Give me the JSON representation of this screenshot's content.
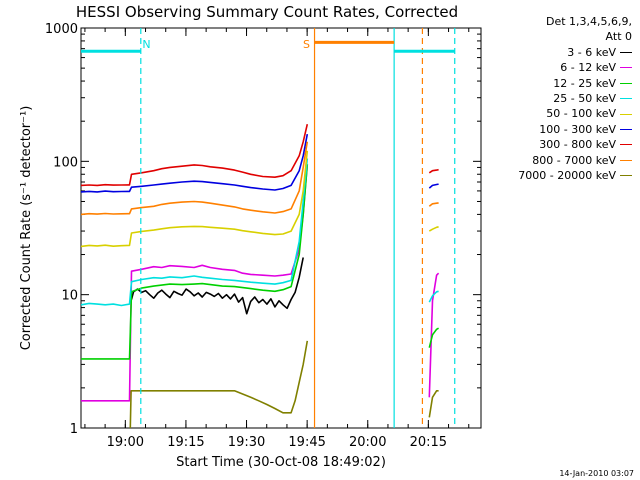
{
  "chart_data": {
    "type": "line",
    "title": "HESSI Observing Summary Count Rates, Corrected",
    "xlabel": "Start Time (30-Oct-08 18:49:02)",
    "ylabel": "Corrected Count Rate (s⁻¹ detector⁻¹)",
    "yscale": "log",
    "ylim": [
      1,
      1000
    ],
    "xlim_minutes_after_start": [
      0,
      99
    ],
    "x_ticks": [
      "19:00",
      "19:15",
      "19:30",
      "19:45",
      "20:00",
      "20:15"
    ],
    "x_tick_minutes_after_start": [
      10.97,
      25.97,
      40.97,
      55.97,
      70.97,
      85.97
    ],
    "y_ticks": [
      "1",
      "10",
      "100",
      "1000"
    ],
    "y_tick_values": [
      1,
      10,
      100,
      1000
    ],
    "legend_header": [
      "Det 1,3,4,5,6,9,",
      "Att 0"
    ],
    "legend_position": "outside-right",
    "series": [
      {
        "name": "3 - 6 keV",
        "color": "#000000",
        "segments": [
          {
            "x": [
              12.5,
              13,
              14,
              15,
              16,
              17,
              18,
              19,
              20,
              21,
              22,
              23,
              24,
              25,
              26,
              27,
              28,
              29,
              30,
              31,
              32,
              33,
              34,
              35,
              36,
              37,
              38,
              39,
              40,
              41,
              42,
              43,
              44,
              45,
              46,
              47,
              48,
              49,
              50,
              51,
              52,
              53,
              54,
              55
            ],
            "y": [
              9.2,
              10.5,
              11,
              10.4,
              10.7,
              10,
              9.4,
              10.3,
              10.8,
              10.1,
              9.5,
              10.6,
              10.2,
              9.9,
              11,
              10.5,
              9.8,
              10.3,
              9.6,
              10.4,
              10.1,
              9.7,
              10.2,
              9.4,
              10,
              9.3,
              10.1,
              8.8,
              9.5,
              7.2,
              8.9,
              9.6,
              8.7,
              9.2,
              8.5,
              9.3,
              8.1,
              9,
              8.4,
              7.9,
              9.2,
              10.4,
              13.5,
              19
            ]
          }
        ]
      },
      {
        "name": "6 - 12 keV",
        "color": "#e000e0",
        "segments": [
          {
            "x": [
              0,
              2,
              4,
              6,
              8,
              10,
              12,
              12.5,
              15,
              18,
              20,
              22,
              25,
              28,
              30,
              32,
              35,
              38,
              40,
              42,
              45,
              48,
              50,
              52,
              54,
              55,
              56
            ],
            "y": [
              1.6,
              1.6,
              1.6,
              1.6,
              1.6,
              1.6,
              1.6,
              15,
              15.5,
              16.2,
              16,
              16.5,
              16.3,
              16,
              16.6,
              16,
              15.5,
              15.2,
              14.5,
              14.2,
              14,
              13.8,
              14,
              14.3,
              22,
              40,
              95
            ]
          },
          {
            "x": [
              86.2,
              87,
              88,
              88.5
            ],
            "y": [
              1.7,
              9,
              14,
              14.5
            ]
          }
        ]
      },
      {
        "name": "12 - 25 keV",
        "color": "#00d000",
        "segments": [
          {
            "x": [
              0,
              2,
              4,
              6,
              8,
              10,
              12,
              12.5,
              15,
              18,
              20,
              22,
              25,
              28,
              30,
              32,
              35,
              38,
              40,
              42,
              45,
              48,
              50,
              52,
              54,
              55,
              56
            ],
            "y": [
              3.3,
              3.3,
              3.3,
              3.3,
              3.3,
              3.3,
              3.3,
              10.5,
              11.2,
              11.6,
              11.8,
              12,
              11.9,
              12,
              12.1,
              11.9,
              11.6,
              11.5,
              11.3,
              11.1,
              10.8,
              10.6,
              10.9,
              11.5,
              20,
              40,
              95
            ]
          },
          {
            "x": [
              86.2,
              87,
              88,
              88.5
            ],
            "y": [
              4,
              5,
              5.5,
              5.6
            ]
          }
        ]
      },
      {
        "name": "25 - 50 keV",
        "color": "#00e0e0",
        "segments": [
          {
            "x": [
              0,
              2,
              4,
              6,
              8,
              10,
              12,
              12.5,
              15,
              18,
              20,
              22,
              25,
              28,
              30,
              32,
              35,
              38,
              40,
              42,
              45,
              48,
              50,
              52,
              54,
              55,
              56
            ],
            "y": [
              8.4,
              8.6,
              8.5,
              8.4,
              8.5,
              8.3,
              8.5,
              12.5,
              13,
              13.4,
              13.3,
              13.6,
              13.4,
              13.8,
              13.5,
              13.3,
              13,
              12.8,
              12.6,
              12.4,
              12.2,
              12,
              12.3,
              12.8,
              25,
              50,
              105
            ]
          },
          {
            "x": [
              86.2,
              87,
              88,
              88.5
            ],
            "y": [
              8.8,
              9.8,
              10.5,
              10.6
            ]
          }
        ]
      },
      {
        "name": "50 - 100 keV",
        "color": "#d8d000",
        "segments": [
          {
            "x": [
              0,
              2,
              4,
              6,
              8,
              10,
              12,
              12.5,
              15,
              18,
              20,
              22,
              25,
              28,
              30,
              32,
              35,
              38,
              40,
              42,
              45,
              48,
              50,
              52,
              54,
              55,
              56
            ],
            "y": [
              23,
              23.4,
              23.2,
              23.5,
              23.1,
              23.3,
              23.4,
              29,
              29.8,
              30.5,
              31.2,
              31.8,
              32.3,
              32.5,
              32.4,
              32,
              31.5,
              31,
              30.2,
              29.6,
              28.8,
              28.2,
              28.5,
              30,
              40,
              60,
              120
            ]
          },
          {
            "x": [
              86.2,
              87,
              88,
              88.5
            ],
            "y": [
              30,
              31,
              32,
              32.3
            ]
          }
        ]
      },
      {
        "name": "100 - 300 keV",
        "color": "#0000e0",
        "segments": [
          {
            "x": [
              0,
              2,
              4,
              6,
              8,
              10,
              12,
              12.5,
              15,
              18,
              20,
              22,
              25,
              28,
              30,
              32,
              35,
              38,
              40,
              42,
              45,
              48,
              50,
              52,
              54,
              55,
              56
            ],
            "y": [
              59,
              59.5,
              59,
              59.8,
              59.2,
              59.4,
              59.5,
              64,
              65,
              66.5,
              67.5,
              68.5,
              70,
              71,
              70.5,
              69.5,
              68,
              66.5,
              65,
              63.5,
              62,
              61,
              62.5,
              66,
              85,
              110,
              160
            ]
          },
          {
            "x": [
              86.2,
              87,
              88,
              88.5
            ],
            "y": [
              63,
              66,
              67,
              67.5
            ]
          }
        ]
      },
      {
        "name": "300 - 800 keV",
        "color": "#e00000",
        "segments": [
          {
            "x": [
              0,
              2,
              4,
              6,
              8,
              10,
              12,
              12.5,
              15,
              18,
              20,
              22,
              25,
              28,
              30,
              32,
              35,
              38,
              40,
              42,
              45,
              48,
              50,
              52,
              54,
              55,
              56
            ],
            "y": [
              66,
              66.5,
              66,
              66.8,
              66.3,
              66.5,
              66.6,
              80,
              82,
              85,
              88,
              90,
              92,
              94,
              93,
              91,
              89,
              86,
              83,
              80,
              77,
              76,
              78,
              85,
              110,
              140,
              190
            ]
          },
          {
            "x": [
              86.2,
              87,
              88,
              88.5
            ],
            "y": [
              82,
              85,
              86,
              86.5
            ]
          }
        ]
      },
      {
        "name": "800 - 7000 keV",
        "color": "#ff8000",
        "segments": [
          {
            "x": [
              0,
              2,
              4,
              6,
              8,
              10,
              12,
              12.5,
              15,
              18,
              20,
              22,
              25,
              28,
              30,
              32,
              35,
              38,
              40,
              42,
              45,
              48,
              50,
              52,
              54,
              55,
              56
            ],
            "y": [
              40,
              40.5,
              40.2,
              40.6,
              40.3,
              40.4,
              40.5,
              44,
              45,
              46,
              47.5,
              48.5,
              49.5,
              50,
              49.5,
              48.5,
              47,
              45.5,
              44,
              43,
              41.8,
              41,
              42,
              44,
              60,
              90,
              140
            ]
          },
          {
            "x": [
              86.2,
              87,
              88,
              88.5
            ],
            "y": [
              46,
              48,
              48.5,
              48.8
            ]
          }
        ]
      },
      {
        "name": "7000 - 20000 keV",
        "color": "#808000",
        "segments": [
          {
            "x": [
              12.2,
              12.4,
              14,
              16,
              18,
              20,
              22,
              24,
              26,
              28,
              30,
              32,
              34,
              36,
              38,
              40,
              42,
              44,
              46,
              48,
              50,
              52,
              53,
              54,
              55,
              56
            ],
            "y": [
              1,
              1.9,
              1.9,
              1.9,
              1.9,
              1.9,
              1.9,
              1.9,
              1.9,
              1.9,
              1.9,
              1.9,
              1.9,
              1.9,
              1.9,
              1.8,
              1.7,
              1.6,
              1.5,
              1.4,
              1.3,
              1.3,
              1.6,
              2.2,
              3,
              4.5
            ]
          },
          {
            "x": [
              86.2,
              87,
              88,
              88.5
            ],
            "y": [
              1.2,
              1.7,
              1.9,
              1.9
            ]
          }
        ]
      }
    ],
    "intervals": [
      {
        "color": "#00e0e0",
        "level": 670,
        "x": [
          0,
          14.8
        ]
      },
      {
        "color": "#ff8000",
        "level": 780,
        "x": [
          57.8,
          77.5
        ]
      },
      {
        "color": "#00e0e0",
        "level": 670,
        "x": [
          77.5,
          92.5
        ]
      }
    ],
    "vlines": [
      {
        "color": "#00e0e0",
        "style": "dashed",
        "x": 14.8
      },
      {
        "color": "#ff8000",
        "style": "solid",
        "x": 57.8
      },
      {
        "color": "#00e0e0",
        "style": "solid",
        "x": 77.5
      },
      {
        "color": "#ff8000",
        "style": "dashed",
        "x": 84.5
      },
      {
        "color": "#00e0e0",
        "style": "dashed",
        "x": 92.5
      }
    ],
    "annotations": [
      {
        "text": "N",
        "color": "#00e0e0",
        "x": 16.2
      },
      {
        "text": "S",
        "color": "#ff8000",
        "x": 55.8
      }
    ]
  },
  "footer": {
    "timestamp": "14-Jan-2010 03:07"
  }
}
